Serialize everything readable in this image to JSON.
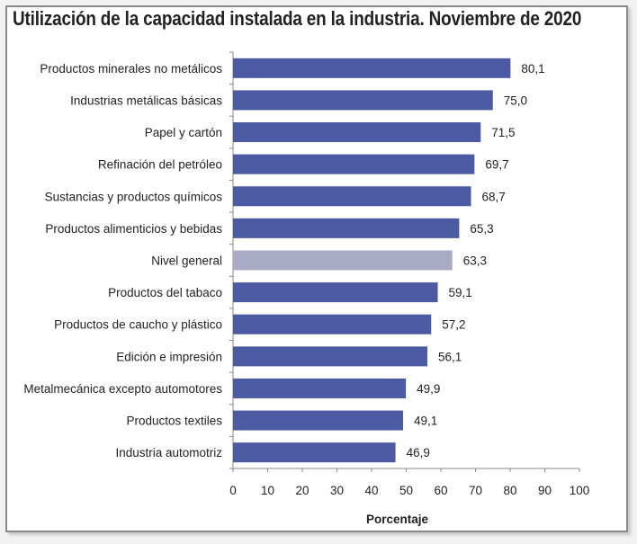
{
  "chart_data": {
    "type": "bar",
    "orientation": "horizontal",
    "title": "Utilización de la capacidad instalada en la industria. Noviembre de 2020",
    "xlabel": "Porcentaje",
    "ylabel": "",
    "xlim": [
      0,
      100
    ],
    "xticks": [
      "0",
      "10",
      "20",
      "30",
      "40",
      "50",
      "60",
      "70",
      "80",
      "90",
      "100"
    ],
    "categories": [
      "Productos minerales no metálicos",
      "Industrias metálicas básicas",
      "Papel y cartón",
      "Refinación del petróleo",
      "Sustancias y productos químicos",
      "Productos alimenticios y bebidas",
      "Nivel general",
      "Productos del tabaco",
      "Productos de caucho y plástico",
      "Edición e impresión",
      "Metalmecánica excepto automotores",
      "Productos textiles",
      "Industria automotriz"
    ],
    "values": [
      80.1,
      75.0,
      71.5,
      69.7,
      68.7,
      65.3,
      63.3,
      59.1,
      57.2,
      56.1,
      49.9,
      49.1,
      46.9
    ],
    "value_labels": [
      "80,1",
      "75,0",
      "71,5",
      "69,7",
      "68,7",
      "65,3",
      "63,3",
      "59,1",
      "57,2",
      "56,1",
      "49,9",
      "49,1",
      "46,9"
    ],
    "highlight": "Nivel general",
    "grid": false
  },
  "colors": {
    "bar": "#4b5aa3",
    "highlight": "#a9abc6",
    "axis": "#888888",
    "text": "#222222"
  }
}
